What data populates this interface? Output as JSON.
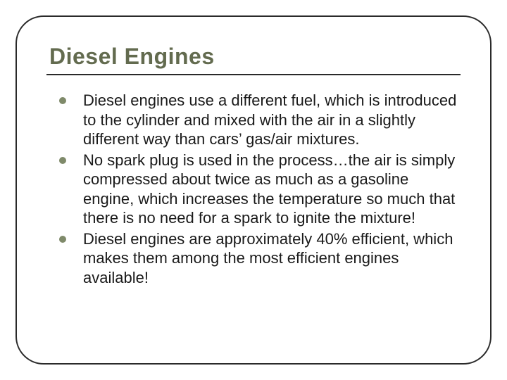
{
  "slide": {
    "title": "Diesel Engines",
    "title_color": "#636b4f",
    "title_fontsize": 32,
    "border_color": "#2a2a2a",
    "border_radius": 40,
    "bullet_color": "#7f8a6a",
    "body_fontsize": 22,
    "body_color": "#1a1a1a",
    "bullets": [
      "Diesel engines use a different fuel, which is introduced to the cylinder and mixed with the air in a slightly different way than cars’ gas/air mixtures.",
      "No spark plug is used in the process…the air is simply compressed about twice as much as a gasoline engine, which increases the temperature so much that there is no need for a spark to ignite the mixture!",
      "Diesel engines are approximately 40% efficient, which makes them among the most efficient engines available!"
    ]
  }
}
